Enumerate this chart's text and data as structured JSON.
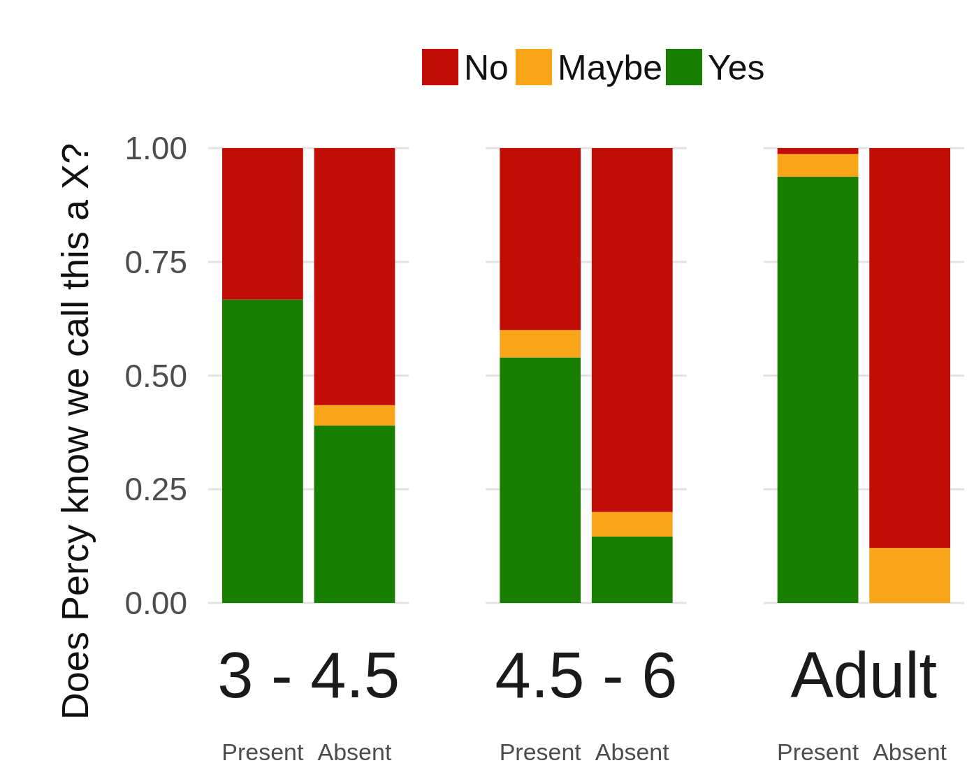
{
  "chart_data": [
    {
      "type": "bar",
      "title": "3 - 4.5",
      "ylabel": "Does Percy know we call this a X?",
      "categories": [
        "Present",
        "Absent"
      ],
      "stacked": true,
      "ylim": [
        0,
        1
      ],
      "yticks": [
        {
          "value": 0,
          "label": "0.00"
        },
        {
          "value": 0.25,
          "label": "0.25"
        },
        {
          "value": 0.5,
          "label": "0.50"
        },
        {
          "value": 0.75,
          "label": "0.75"
        },
        {
          "value": 1,
          "label": "1.00"
        }
      ],
      "grid": "y",
      "legend": "top",
      "series": [
        {
          "name": "Yes",
          "color": "#177e00",
          "values": [
            0.667,
            0.39
          ]
        },
        {
          "name": "Maybe",
          "color": "#f9a51a",
          "values": [
            0,
            0.045
          ]
        },
        {
          "name": "No",
          "color": "#c00d05",
          "values": [
            0.333,
            0.565
          ]
        }
      ]
    },
    {
      "type": "bar",
      "title": "4.5 - 6",
      "categories": [
        "Present",
        "Absent"
      ],
      "stacked": true,
      "ylim": [
        0,
        1
      ],
      "yticks": [
        {
          "value": 0,
          "label": null
        },
        {
          "value": 0.25,
          "label": null
        },
        {
          "value": 0.5,
          "label": null
        },
        {
          "value": 0.75,
          "label": null
        },
        {
          "value": 1,
          "label": null
        }
      ],
      "grid": "y",
      "tick_labels": "x",
      "series": [
        {
          "color": "#177e00",
          "values": [
            0.54,
            0.146
          ]
        },
        {
          "color": "#f9a51a",
          "values": [
            0.06,
            0.054
          ]
        },
        {
          "color": "#c00d05",
          "values": [
            0.4,
            0.8
          ]
        }
      ]
    },
    {
      "type": "bar",
      "title": "Adult",
      "categories": [
        "Present",
        "Absent"
      ],
      "stacked": true,
      "ylim": [
        0,
        1
      ],
      "yticks": [
        {
          "value": 0,
          "label": null
        },
        {
          "value": 0.25,
          "label": null
        },
        {
          "value": 0.5,
          "label": null
        },
        {
          "value": 0.75,
          "label": null
        },
        {
          "value": 1,
          "label": null
        }
      ],
      "grid": "y",
      "tick_labels": "x",
      "series": [
        {
          "color": "#177e00",
          "values": [
            0.937,
            0
          ]
        },
        {
          "color": "#f9a51a",
          "values": [
            0.05,
            0.121
          ]
        },
        {
          "color": "#c00d05",
          "values": [
            0.013,
            0.879
          ]
        }
      ]
    }
  ]
}
